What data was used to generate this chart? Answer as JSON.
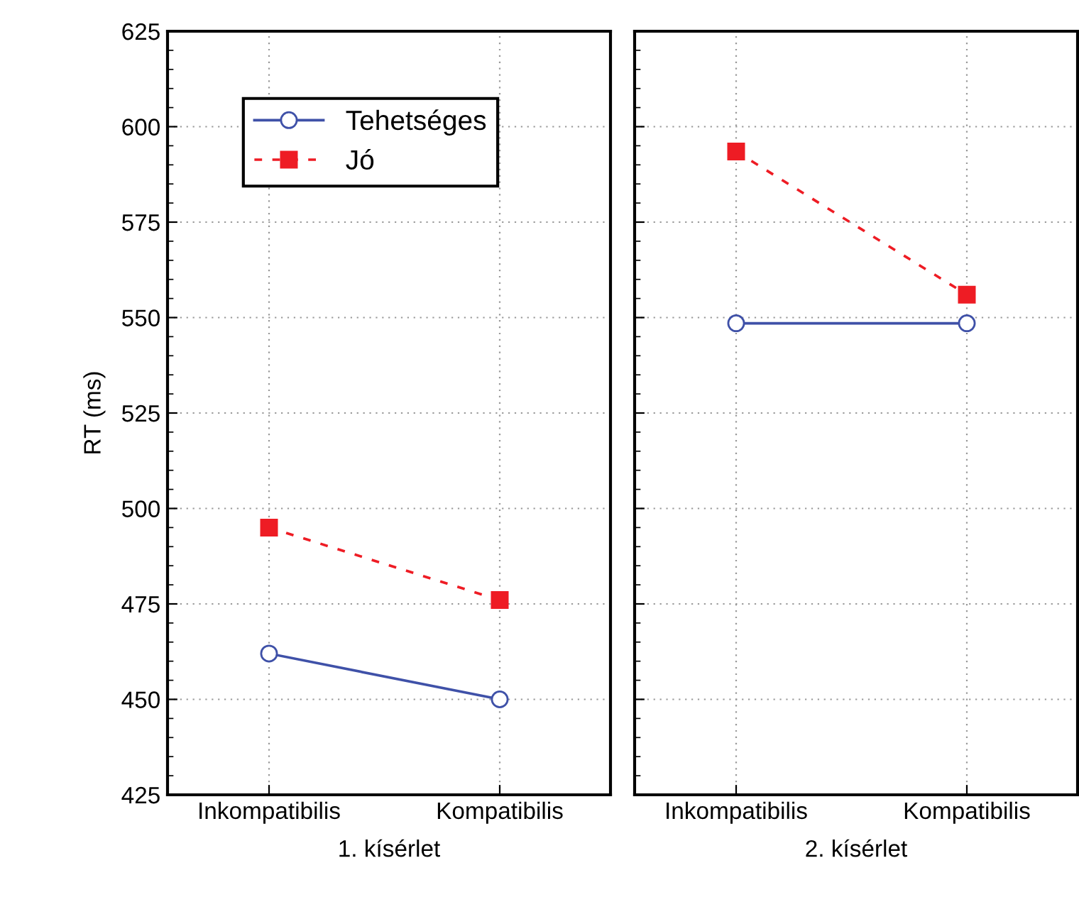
{
  "chart_data": [
    {
      "type": "line",
      "xlabel": "1. kísérlet",
      "ylabel": "RT (ms)",
      "categories": [
        "Inkompatibilis",
        "Kompatibilis"
      ],
      "ylim": [
        425,
        625
      ],
      "yticks": [
        425,
        450,
        475,
        500,
        525,
        550,
        575,
        600,
        625
      ],
      "grid": true,
      "legend": "top left",
      "series": [
        {
          "name": "Tehetséges",
          "color": "#3f51a8",
          "values": [
            462,
            450
          ],
          "marker": "circle",
          "line_style": "solid"
        },
        {
          "name": "Jó",
          "color": "#ee1c24",
          "values": [
            495,
            476
          ],
          "marker": "square",
          "line_style": "dashed"
        }
      ]
    },
    {
      "type": "line",
      "xlabel": "2. kísérlet",
      "categories": [
        "Inkompatibilis",
        "Kompatibilis"
      ],
      "ylim": [
        425,
        625
      ],
      "yticks": [
        425,
        450,
        475,
        500,
        525,
        550,
        575,
        600,
        625
      ],
      "grid": true,
      "tick_labels": "x",
      "series": [
        {
          "color": "#3f51a8",
          "values": [
            548.5,
            548.5
          ],
          "marker": "circle",
          "line_style": "solid"
        },
        {
          "color": "#ee1c24",
          "values": [
            593.5,
            556
          ],
          "marker": "square",
          "line_style": "dashed"
        }
      ]
    }
  ]
}
